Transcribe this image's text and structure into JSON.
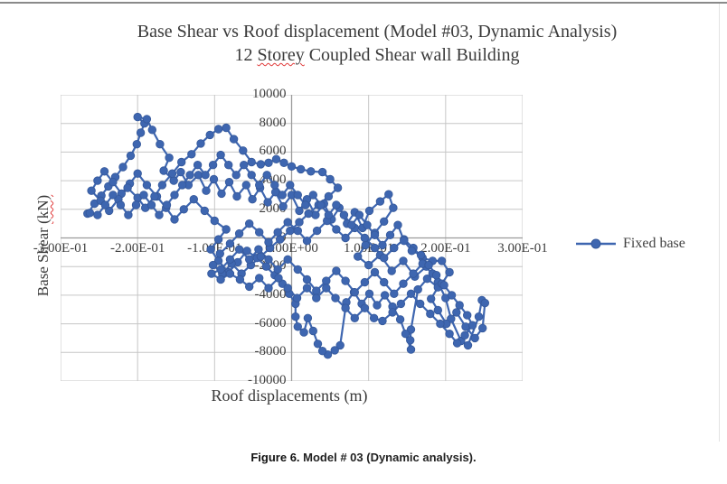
{
  "window": {
    "top_border": true
  },
  "chart": {
    "title_line1": "Base Shear vs Roof displacement (Model #03, Dynamic Analysis)",
    "title2_prefix": "12 ",
    "title2_word": "Storey",
    "title2_suffix": " Coupled Shear wall Building",
    "ylabel_prefix": "Base Shear ",
    "ylabel_word": "(kN)",
    "xlabel": "Roof displacements (m)"
  },
  "legend": {
    "label": "Fixed base"
  },
  "caption": {
    "label": "Figure 6.",
    "text": " Model # 03 (Dynamic analysis)."
  },
  "chart_data": {
    "type": "scatter",
    "title": "Base Shear vs Roof displacement (Model #03, Dynamic Analysis) 12 Storey Coupled Shear wall Building",
    "xlabel": "Roof displacements (m)",
    "ylabel": "Base Shear (kN)",
    "xlim": [
      -0.3,
      0.3
    ],
    "ylim": [
      -10000,
      10000
    ],
    "grid": true,
    "legend_position": "right-middle",
    "x_tick_labels": [
      "-3.00E-01",
      "-2.00E-01",
      "-1.00E-01",
      "0.00E+00",
      "1.00E-01",
      "2.00E-01",
      "3.00E-01"
    ],
    "x_tick_values": [
      -0.3,
      -0.2,
      -0.1,
      0,
      0.1,
      0.2,
      0.3
    ],
    "y_tick_values": [
      10000,
      8000,
      6000,
      4000,
      2000,
      0,
      -2000,
      -4000,
      -6000,
      -8000,
      -10000
    ],
    "style": {
      "marker_color": "#3E66B0",
      "marker_edge": "#35589A",
      "line_color": "#3E66B0",
      "grid_color": "#C6C6C6",
      "axis_color": "#9B9B9B",
      "marker_radius": 4.3,
      "line_width": 2.2
    },
    "series": [
      {
        "name": "Fixed base",
        "points_note": "values estimated from pixel positions of dense hysteresis trace",
        "points": [
          [
            -0.265,
            1700
          ],
          [
            -0.256,
            2400
          ],
          [
            -0.247,
            2950
          ],
          [
            -0.238,
            3600
          ],
          [
            -0.229,
            4250
          ],
          [
            -0.219,
            4950
          ],
          [
            -0.209,
            5750
          ],
          [
            -0.201,
            6550
          ],
          [
            -0.196,
            7350
          ],
          [
            -0.191,
            8000
          ],
          [
            -0.2,
            8450
          ],
          [
            -0.188,
            8300
          ],
          [
            -0.181,
            7550
          ],
          [
            -0.171,
            6550
          ],
          [
            -0.159,
            5600
          ],
          [
            -0.166,
            4700
          ],
          [
            -0.153,
            4000
          ],
          [
            -0.144,
            4600
          ],
          [
            -0.134,
            3700
          ],
          [
            -0.121,
            4400
          ],
          [
            -0.111,
            3300
          ],
          [
            -0.101,
            4100
          ],
          [
            -0.091,
            3100
          ],
          [
            -0.081,
            3900
          ],
          [
            -0.071,
            2900
          ],
          [
            -0.059,
            3700
          ],
          [
            -0.051,
            2700
          ],
          [
            -0.041,
            3500
          ],
          [
            -0.031,
            2500
          ],
          [
            -0.021,
            3200
          ],
          [
            -0.011,
            2200
          ],
          [
            0.0,
            3000
          ],
          [
            0.01,
            1900
          ],
          [
            0.02,
            2700
          ],
          [
            0.031,
            1600
          ],
          [
            0.042,
            2400
          ],
          [
            0.052,
            1300
          ],
          [
            0.062,
            2100
          ],
          [
            0.072,
            1000
          ],
          [
            0.082,
            1800
          ],
          [
            0.092,
            700
          ],
          [
            0.101,
            1900
          ],
          [
            0.115,
            2550
          ],
          [
            0.126,
            3050
          ],
          [
            0.132,
            2100
          ],
          [
            0.12,
            1150
          ],
          [
            0.108,
            350
          ],
          [
            0.096,
            -500
          ],
          [
            0.086,
            -1300
          ],
          [
            0.1,
            -1900
          ],
          [
            0.115,
            -1200
          ],
          [
            0.13,
            -2300
          ],
          [
            0.145,
            -1600
          ],
          [
            0.16,
            -2700
          ],
          [
            0.175,
            -2000
          ],
          [
            0.19,
            -3100
          ],
          [
            0.2,
            -4200
          ],
          [
            0.207,
            -5650
          ],
          [
            0.22,
            -7200
          ],
          [
            0.229,
            -7500
          ],
          [
            0.243,
            -5500
          ],
          [
            0.247,
            -4350
          ],
          [
            0.251,
            -4550
          ],
          [
            0.248,
            -6300
          ],
          [
            0.238,
            -7000
          ],
          [
            0.226,
            -6200
          ],
          [
            0.214,
            -5200
          ],
          [
            0.201,
            -6000
          ],
          [
            0.19,
            -5050
          ],
          [
            0.181,
            -4250
          ],
          [
            0.19,
            -3450
          ],
          [
            0.176,
            -2850
          ],
          [
            0.164,
            -3600
          ],
          [
            0.155,
            -6400
          ],
          [
            0.154,
            -7150
          ],
          [
            0.155,
            -7800
          ],
          [
            0.148,
            -6700
          ],
          [
            0.141,
            -5700
          ],
          [
            0.131,
            -4800
          ],
          [
            0.121,
            -4000
          ],
          [
            0.111,
            -4700
          ],
          [
            0.101,
            -3900
          ],
          [
            0.091,
            -4600
          ],
          [
            0.081,
            -3800
          ],
          [
            0.071,
            -4500
          ],
          [
            0.063,
            -7500
          ],
          [
            0.056,
            -7850
          ],
          [
            0.047,
            -8150
          ],
          [
            0.04,
            -7900
          ],
          [
            0.034,
            -7400
          ],
          [
            0.028,
            -6500
          ],
          [
            0.021,
            -5600
          ],
          [
            0.016,
            -6600
          ],
          [
            0.008,
            -6200
          ],
          [
            0.005,
            -5500
          ],
          [
            0.005,
            -4600
          ],
          [
            -0.003,
            -3900
          ],
          [
            -0.012,
            -3200
          ],
          [
            -0.022,
            -2600
          ],
          [
            -0.033,
            -2000
          ],
          [
            -0.045,
            -1400
          ],
          [
            -0.058,
            -900
          ],
          [
            -0.07,
            -1700
          ],
          [
            -0.082,
            -2400
          ],
          [
            -0.095,
            -1600
          ],
          [
            -0.105,
            -800
          ],
          [
            -0.095,
            -100
          ],
          [
            -0.085,
            600
          ],
          [
            -0.1,
            1200
          ],
          [
            -0.113,
            1900
          ],
          [
            -0.127,
            2700
          ],
          [
            -0.14,
            2000
          ],
          [
            -0.152,
            1300
          ],
          [
            -0.163,
            2100
          ],
          [
            -0.175,
            2900
          ],
          [
            -0.188,
            3700
          ],
          [
            -0.2,
            4500
          ],
          [
            -0.21,
            3800
          ],
          [
            -0.221,
            3100
          ],
          [
            -0.232,
            3900
          ],
          [
            -0.243,
            4650
          ],
          [
            -0.252,
            4000
          ],
          [
            -0.26,
            3300
          ],
          [
            -0.248,
            2600
          ],
          [
            -0.237,
            1900
          ],
          [
            -0.225,
            2700
          ],
          [
            -0.213,
            3500
          ],
          [
            -0.2,
            2800
          ],
          [
            -0.19,
            2100
          ],
          [
            -0.178,
            2900
          ],
          [
            -0.168,
            3700
          ],
          [
            -0.155,
            4500
          ],
          [
            -0.143,
            5300
          ],
          [
            -0.13,
            5850
          ],
          [
            -0.118,
            6600
          ],
          [
            -0.106,
            7200
          ],
          [
            -0.095,
            7600
          ],
          [
            -0.085,
            7700
          ],
          [
            -0.075,
            6900
          ],
          [
            -0.063,
            6100
          ],
          [
            -0.052,
            5300
          ],
          [
            -0.04,
            5150
          ],
          [
            -0.03,
            5250
          ],
          [
            -0.02,
            5500
          ],
          [
            -0.01,
            5250
          ],
          [
            0.0,
            5000
          ],
          [
            0.012,
            4800
          ],
          [
            0.025,
            4650
          ],
          [
            0.04,
            4600
          ],
          [
            0.05,
            4100
          ],
          [
            0.06,
            3500
          ],
          [
            0.048,
            2900
          ],
          [
            0.035,
            2300
          ],
          [
            0.022,
            1700
          ],
          [
            0.01,
            1100
          ],
          [
            -0.002,
            500
          ],
          [
            -0.015,
            -100
          ],
          [
            -0.028,
            -700
          ],
          [
            -0.04,
            -1300
          ],
          [
            -0.053,
            -1900
          ],
          [
            -0.065,
            -2500
          ],
          [
            -0.078,
            -1800
          ],
          [
            -0.09,
            -2500
          ],
          [
            -0.102,
            -1900
          ],
          [
            -0.093,
            -1100
          ],
          [
            -0.08,
            -400
          ],
          [
            -0.068,
            300
          ],
          [
            -0.055,
            1000
          ],
          [
            -0.042,
            400
          ],
          [
            -0.03,
            -300
          ],
          [
            -0.018,
            400
          ],
          [
            -0.005,
            1100
          ],
          [
            0.008,
            500
          ],
          [
            0.02,
            -200
          ],
          [
            0.033,
            500
          ],
          [
            0.046,
            1200
          ],
          [
            0.058,
            600
          ],
          [
            0.07,
            0
          ],
          [
            0.082,
            700
          ],
          [
            0.095,
            0
          ],
          [
            0.108,
            -700
          ],
          [
            0.12,
            -1400
          ],
          [
            0.133,
            -700
          ],
          [
            0.146,
            -100
          ],
          [
            0.158,
            -700
          ],
          [
            0.17,
            -1400
          ],
          [
            0.183,
            -1600
          ],
          [
            0.195,
            -1600
          ],
          [
            0.205,
            -2400
          ],
          [
            0.195,
            -3200
          ],
          [
            0.183,
            -2500
          ],
          [
            0.17,
            -1800
          ],
          [
            0.158,
            -2500
          ],
          [
            0.145,
            -3200
          ],
          [
            0.133,
            -3900
          ],
          [
            0.12,
            -3100
          ],
          [
            0.108,
            -2400
          ],
          [
            0.095,
            -3100
          ],
          [
            0.082,
            -3800
          ],
          [
            0.07,
            -3000
          ],
          [
            0.058,
            -2300
          ],
          [
            0.045,
            -3000
          ],
          [
            0.032,
            -3700
          ],
          [
            0.02,
            -2900
          ],
          [
            0.008,
            -2200
          ],
          [
            -0.005,
            -1500
          ],
          [
            -0.018,
            -2200
          ],
          [
            -0.03,
            -1500
          ],
          [
            -0.043,
            -800
          ],
          [
            -0.055,
            -1500
          ],
          [
            -0.068,
            -800
          ],
          [
            -0.08,
            -1500
          ],
          [
            -0.092,
            -2200
          ],
          [
            -0.104,
            -2500
          ],
          [
            -0.092,
            -2900
          ],
          [
            -0.08,
            -2500
          ],
          [
            -0.067,
            -2900
          ],
          [
            -0.055,
            -3400
          ],
          [
            -0.042,
            -2800
          ],
          [
            -0.03,
            -3500
          ],
          [
            -0.017,
            -2800
          ],
          [
            -0.005,
            -3500
          ],
          [
            0.007,
            -4200
          ],
          [
            0.02,
            -3500
          ],
          [
            0.032,
            -4200
          ],
          [
            0.045,
            -3500
          ],
          [
            0.057,
            -4200
          ],
          [
            0.07,
            -4900
          ],
          [
            0.082,
            -5600
          ],
          [
            0.095,
            -4900
          ],
          [
            0.107,
            -5600
          ],
          [
            0.118,
            -5800
          ],
          [
            0.131,
            -5200
          ],
          [
            0.142,
            -4600
          ],
          [
            0.155,
            -3900
          ],
          [
            0.167,
            -4600
          ],
          [
            0.18,
            -5300
          ],
          [
            0.193,
            -6000
          ],
          [
            0.205,
            -6700
          ],
          [
            0.215,
            -7350
          ],
          [
            0.225,
            -6800
          ],
          [
            0.235,
            -6100
          ],
          [
            0.228,
            -5400
          ],
          [
            0.218,
            -4700
          ],
          [
            0.208,
            -4000
          ],
          [
            0.198,
            -3300
          ],
          [
            0.188,
            -2600
          ],
          [
            0.178,
            -1900
          ],
          [
            0.168,
            -1200
          ],
          [
            0.156,
            -900
          ],
          [
            0.146,
            -200
          ],
          [
            0.138,
            900
          ],
          [
            0.128,
            200
          ],
          [
            0.118,
            -500
          ],
          [
            0.108,
            200
          ],
          [
            0.098,
            900
          ],
          [
            0.088,
            1600
          ],
          [
            0.078,
            900
          ],
          [
            0.068,
            1600
          ],
          [
            0.058,
            2300
          ],
          [
            0.048,
            1600
          ],
          [
            0.038,
            2300
          ],
          [
            0.028,
            3000
          ],
          [
            0.018,
            2300
          ],
          [
            0.008,
            3000
          ],
          [
            -0.002,
            3700
          ],
          [
            -0.012,
            3000
          ],
          [
            -0.022,
            3700
          ],
          [
            -0.032,
            4400
          ],
          [
            -0.042,
            3700
          ],
          [
            -0.052,
            4400
          ],
          [
            -0.062,
            5100
          ],
          [
            -0.072,
            4400
          ],
          [
            -0.082,
            5100
          ],
          [
            -0.092,
            5800
          ],
          [
            -0.102,
            5100
          ],
          [
            -0.112,
            4400
          ],
          [
            -0.122,
            5100
          ],
          [
            -0.132,
            4400
          ],
          [
            -0.142,
            3700
          ],
          [
            -0.152,
            3000
          ],
          [
            -0.162,
            2300
          ],
          [
            -0.172,
            1600
          ],
          [
            -0.182,
            2300
          ],
          [
            -0.192,
            3000
          ],
          [
            -0.202,
            2300
          ],
          [
            -0.212,
            1600
          ],
          [
            -0.222,
            2300
          ],
          [
            -0.232,
            3000
          ],
          [
            -0.242,
            2300
          ],
          [
            -0.252,
            1600
          ],
          [
            -0.262,
            1750
          ]
        ]
      }
    ]
  }
}
